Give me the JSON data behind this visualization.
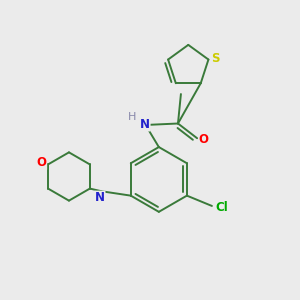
{
  "background_color": "#ebebeb",
  "bond_color": "#3a7a3a",
  "atom_colors": {
    "S": "#cccc00",
    "O": "#ff0000",
    "N": "#2222cc",
    "Cl": "#00aa00",
    "H": "#8888aa",
    "C": "#3a7a3a"
  },
  "figsize": [
    3.0,
    3.0
  ],
  "dpi": 100
}
